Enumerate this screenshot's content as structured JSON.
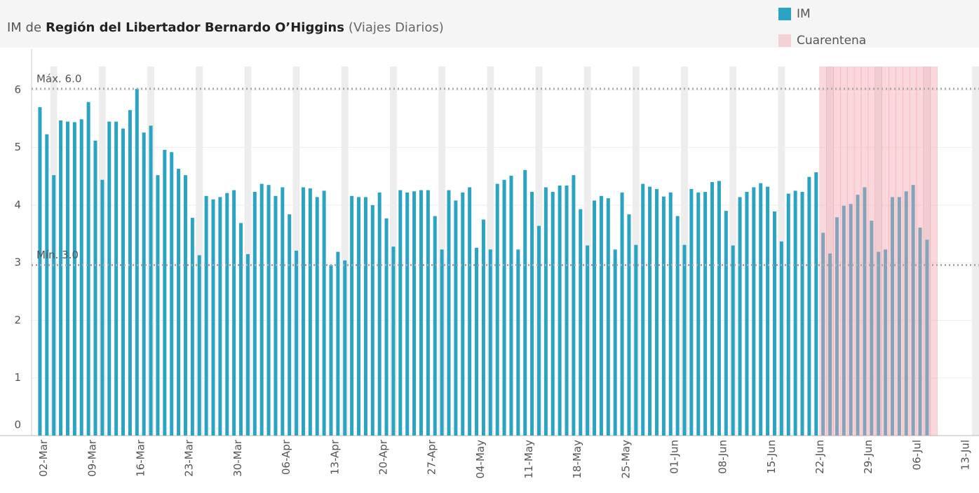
{
  "chart_data": {
    "type": "bar",
    "title": [
      "IM de",
      "Región del Libertador Bernardo O’Higgins",
      "(Viajes Diarios)"
    ],
    "categories": [
      null,
      null,
      "02-Mar",
      null,
      null,
      null,
      null,
      null,
      null,
      "09-Mar",
      null,
      null,
      null,
      null,
      null,
      null,
      "16-Mar",
      null,
      null,
      null,
      null,
      null,
      null,
      "23-Mar",
      null,
      null,
      null,
      null,
      null,
      null,
      "30-Mar",
      null,
      null,
      null,
      null,
      null,
      null,
      "06-Apr",
      null,
      null,
      null,
      null,
      null,
      null,
      "13-Apr",
      null,
      null,
      null,
      null,
      null,
      null,
      "20-Apr",
      null,
      null,
      null,
      null,
      null,
      null,
      "27-Apr",
      null,
      null,
      null,
      null,
      null,
      null,
      "04-May",
      null,
      null,
      null,
      null,
      null,
      null,
      "11-May",
      null,
      null,
      null,
      null,
      null,
      null,
      "18-May",
      null,
      null,
      null,
      null,
      null,
      null,
      "25-May",
      null,
      null,
      null,
      null,
      null,
      null,
      "01-Jun",
      null,
      null,
      null,
      null,
      null,
      null,
      "08-Jun",
      null,
      null,
      null,
      null,
      null,
      null,
      "15-Jun",
      null,
      null,
      null,
      null,
      null,
      null,
      "22-Jun",
      null,
      null,
      null,
      null,
      null,
      null,
      "29-Jun",
      null,
      null,
      null,
      null,
      null,
      null,
      "06-Jul",
      null,
      null,
      null,
      null,
      null,
      null,
      "13-Jul"
    ],
    "series": [
      {
        "name": "IM",
        "color": "#2ba3c3",
        "values": [
          5.7,
          5.23,
          4.52,
          5.47,
          5.45,
          5.44,
          5.49,
          5.79,
          5.12,
          4.44,
          5.45,
          5.45,
          5.33,
          5.65,
          6.02,
          5.26,
          5.38,
          4.52,
          4.96,
          4.92,
          4.63,
          4.52,
          3.78,
          3.13,
          4.16,
          4.1,
          4.14,
          4.21,
          4.26,
          3.69,
          3.15,
          4.23,
          4.37,
          4.35,
          4.16,
          4.31,
          3.84,
          3.21,
          4.31,
          4.29,
          4.14,
          4.25,
          2.96,
          3.19,
          3.04,
          4.16,
          4.14,
          4.14,
          4.0,
          4.22,
          3.77,
          3.28,
          4.26,
          4.22,
          4.24,
          4.26,
          4.26,
          3.81,
          3.23,
          4.26,
          4.08,
          4.22,
          4.31,
          3.26,
          3.75,
          3.23,
          4.37,
          4.44,
          4.51,
          3.23,
          4.61,
          4.23,
          3.64,
          4.31,
          4.23,
          4.34,
          4.34,
          4.52,
          3.93,
          3.3,
          4.08,
          4.16,
          4.12,
          3.23,
          4.22,
          3.84,
          3.31,
          4.37,
          4.32,
          4.28,
          4.15,
          4.22,
          3.81,
          3.31,
          4.28,
          4.22,
          4.23,
          4.4,
          4.42,
          3.9,
          3.3,
          4.14,
          4.23,
          4.31,
          4.38,
          4.32,
          3.89,
          3.37,
          4.2,
          4.25,
          4.23,
          4.49,
          4.57,
          3.52,
          3.16,
          3.79,
          3.99,
          4.02,
          4.18,
          4.31,
          3.73,
          3.19,
          3.23,
          4.14,
          4.14,
          4.24,
          4.35,
          3.61,
          3.4,
          null,
          null,
          null,
          null,
          null,
          null,
          null
        ]
      },
      {
        "name": "Cuarentena",
        "color": "#f4a7b0",
        "values": [
          null,
          null,
          null,
          null,
          null,
          null,
          null,
          null,
          null,
          null,
          null,
          null,
          null,
          null,
          null,
          null,
          null,
          null,
          null,
          null,
          null,
          null,
          null,
          null,
          null,
          null,
          null,
          null,
          null,
          null,
          null,
          null,
          null,
          null,
          null,
          null,
          null,
          null,
          null,
          null,
          null,
          null,
          null,
          null,
          null,
          null,
          null,
          null,
          null,
          null,
          null,
          null,
          null,
          null,
          null,
          null,
          null,
          null,
          null,
          null,
          null,
          null,
          null,
          null,
          null,
          null,
          null,
          null,
          null,
          null,
          null,
          null,
          null,
          null,
          null,
          null,
          null,
          null,
          null,
          null,
          null,
          null,
          null,
          null,
          null,
          null,
          null,
          null,
          null,
          null,
          null,
          null,
          null,
          null,
          null,
          null,
          null,
          null,
          null,
          null,
          null,
          null,
          null,
          null,
          null,
          null,
          null,
          null,
          null,
          null,
          null,
          null,
          null,
          6.4,
          6.4,
          6.4,
          6.4,
          6.4,
          6.4,
          6.4,
          6.4,
          6.4,
          6.4,
          6.4,
          6.4,
          6.4,
          6.4,
          6.4,
          6.4,
          6.4,
          null,
          null,
          null,
          null,
          null,
          null
        ]
      }
    ],
    "reference_lines": [
      {
        "label": "Máx. 6.0",
        "value": 6.02
      },
      {
        "label": "Mín. 3.0",
        "value": 2.96
      }
    ],
    "ylim": [
      0,
      6.71
    ],
    "yticks": [
      0,
      1,
      2,
      3,
      4,
      5,
      6
    ],
    "grid": true,
    "legend": "top-right"
  }
}
